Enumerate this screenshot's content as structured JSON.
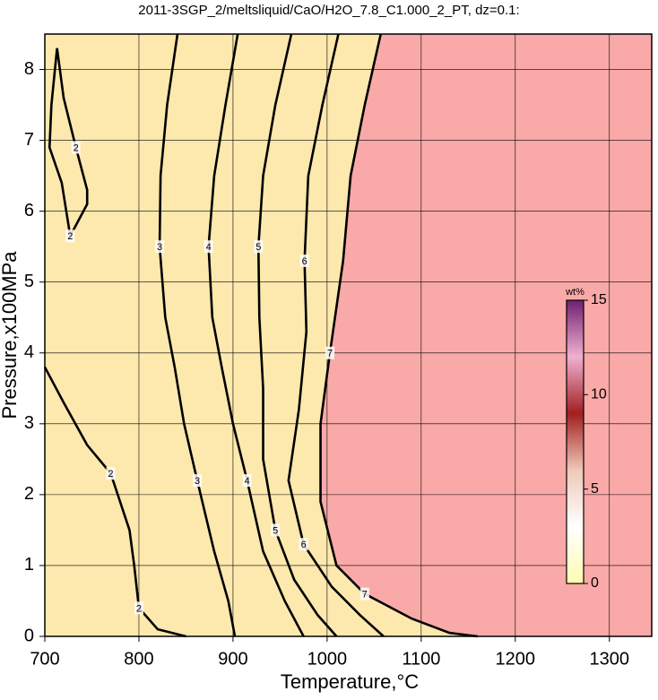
{
  "chart_data": {
    "type": "contour",
    "title": "2011-3SGP_2/meltsliquid/CaO/H2O_7.8_C1.000_2_PT, dz=0.1:",
    "x_label": "Temperature,°C",
    "y_label": "Pressure,x100MPa",
    "xlim": [
      700,
      1345
    ],
    "ylim": [
      0,
      8.5
    ],
    "xticks": [
      700,
      800,
      900,
      1000,
      1100,
      1200,
      1300
    ],
    "yticks": [
      0,
      1,
      2,
      3,
      4,
      5,
      6,
      7,
      8
    ],
    "grid": true,
    "background_color": "#fde8ae",
    "saturated_color": "#f9a9a8",
    "line_color": "#000000",
    "contours": [
      {
        "level": 2,
        "x": [
          700,
          720,
          745,
          770,
          790,
          795,
          800,
          820,
          850
        ],
        "y": [
          3.8,
          3.3,
          2.7,
          2.3,
          1.5,
          1.0,
          0.4,
          0.1,
          0
        ]
      },
      {
        "level": 2,
        "x": [
          707,
          713,
          720,
          733,
          745,
          745,
          727,
          718,
          705,
          707
        ],
        "y": [
          7.5,
          8.3,
          7.6,
          6.9,
          6.3,
          6.1,
          5.65,
          6.4,
          6.9,
          7.5
        ]
      },
      {
        "level": 3,
        "x": [
          841,
          830,
          823,
          822,
          828,
          838,
          848,
          862,
          880,
          895,
          902
        ],
        "y": [
          8.5,
          7.5,
          6.5,
          5.5,
          4.5,
          3.8,
          3.0,
          2.2,
          1.2,
          0.5,
          0
        ]
      },
      {
        "level": 4,
        "x": [
          905,
          892,
          880,
          874,
          878,
          888,
          900,
          915,
          932,
          955,
          975
        ],
        "y": [
          8.5,
          7.5,
          6.5,
          5.5,
          4.5,
          3.8,
          3.0,
          2.2,
          1.2,
          0.5,
          0
        ]
      },
      {
        "level": 5,
        "x": [
          962,
          945,
          932,
          927,
          928,
          932,
          932,
          945,
          965,
          990,
          1010
        ],
        "y": [
          8.5,
          7.5,
          6.5,
          5.5,
          4.5,
          3.5,
          2.5,
          1.5,
          0.8,
          0.3,
          0
        ]
      },
      {
        "level": 6,
        "x": [
          1012,
          995,
          980,
          976,
          978,
          970,
          959,
          975,
          1005,
          1035,
          1060
        ],
        "y": [
          8.5,
          7.5,
          6.5,
          5.3,
          4.3,
          3.2,
          2.2,
          1.3,
          0.7,
          0.3,
          0
        ]
      },
      {
        "level": 7,
        "x": [
          1057,
          1040,
          1025,
          1017,
          1003,
          993,
          993,
          1010,
          1040,
          1090,
          1130,
          1160
        ],
        "y": [
          8.5,
          7.5,
          6.5,
          5.3,
          4.0,
          3.0,
          1.9,
          1.0,
          0.6,
          0.25,
          0.05,
          0
        ]
      }
    ],
    "colorbar": {
      "label": "wt%",
      "lim": [
        0,
        15
      ],
      "ticks": [
        0,
        5,
        10,
        15
      ],
      "colors": [
        "#fffbb0",
        "#ffffff",
        "#f0c8b8",
        "#a02020",
        "#f0b0d0",
        "#702070"
      ]
    }
  }
}
